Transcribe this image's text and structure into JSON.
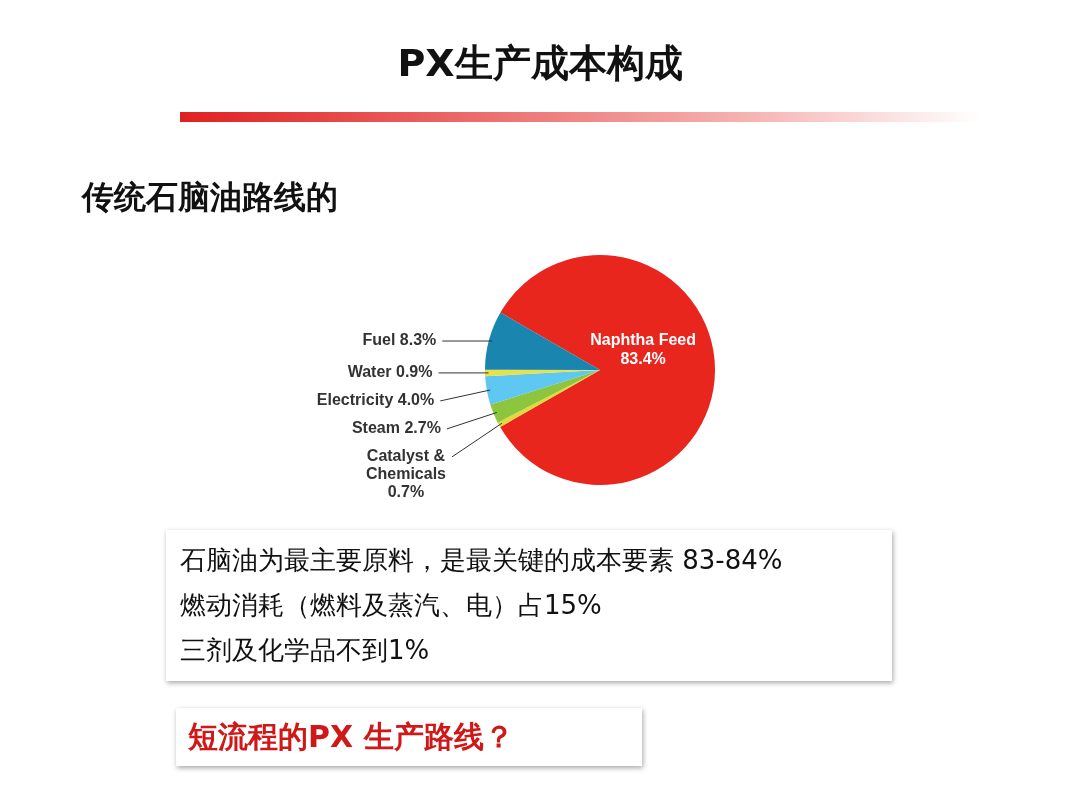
{
  "chart_data": {
    "type": "pie",
    "title": "PX生产成本构成",
    "subtitle": "传统石脑油路线的",
    "categories": [
      "Naphtha Feed",
      "Catalyst & Chemicals",
      "Steam",
      "Electricity",
      "Water",
      "Fuel"
    ],
    "values": [
      83.4,
      0.7,
      2.7,
      4.0,
      0.9,
      8.3
    ],
    "value_labels": [
      "83.4%",
      "0.7%",
      "2.7%",
      "4.0%",
      "0.9%",
      "8.3%"
    ],
    "colors": [
      "#e8261e",
      "#e3d93a",
      "#8cc63f",
      "#5ec8f2",
      "#e8e24a",
      "#1a86b0"
    ],
    "legend": false,
    "annotations": [
      "石脑油为最主要原料，是最关键的成本要素 83-84%",
      "燃动消耗（燃料及蒸汽、电）占15%",
      "三剂及化学品不到1%",
      "短流程的PX 生产路线？"
    ]
  }
}
